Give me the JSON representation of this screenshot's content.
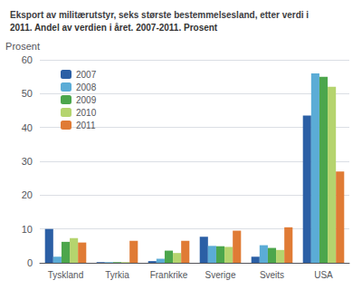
{
  "chart_data": {
    "type": "bar",
    "title": "Eksport av militærutstyr, seks største bestemmelsesland, etter verdi i",
    "subtitle": "2011. Andel av verdien i året. 2007-2011. Prosent",
    "y_label": "Prosent",
    "categories": [
      "Tyskland",
      "Tyrkia",
      "Frankrike",
      "Sverige",
      "Sveits",
      "USA"
    ],
    "series": [
      {
        "name": "2007",
        "color": "#2b5fa5",
        "values": [
          10.0,
          0.2,
          0.5,
          7.7,
          1.8,
          43.5
        ]
      },
      {
        "name": "2008",
        "color": "#5bacd6",
        "values": [
          1.8,
          0.2,
          1.2,
          5.0,
          5.2,
          56.0
        ]
      },
      {
        "name": "2009",
        "color": "#4ca64c",
        "values": [
          6.2,
          0.2,
          3.6,
          4.9,
          4.4,
          55.0
        ]
      },
      {
        "name": "2010",
        "color": "#b5d46e",
        "values": [
          7.3,
          0.2,
          2.9,
          4.7,
          3.8,
          52.0
        ]
      },
      {
        "name": "2011",
        "color": "#e07b35",
        "values": [
          6.0,
          6.5,
          6.5,
          9.5,
          10.5,
          27.0
        ]
      }
    ],
    "ylim": [
      0,
      60
    ],
    "yticks": [
      0,
      10,
      20,
      30,
      40,
      50,
      60
    ],
    "grid": true,
    "legend": "upper left"
  }
}
